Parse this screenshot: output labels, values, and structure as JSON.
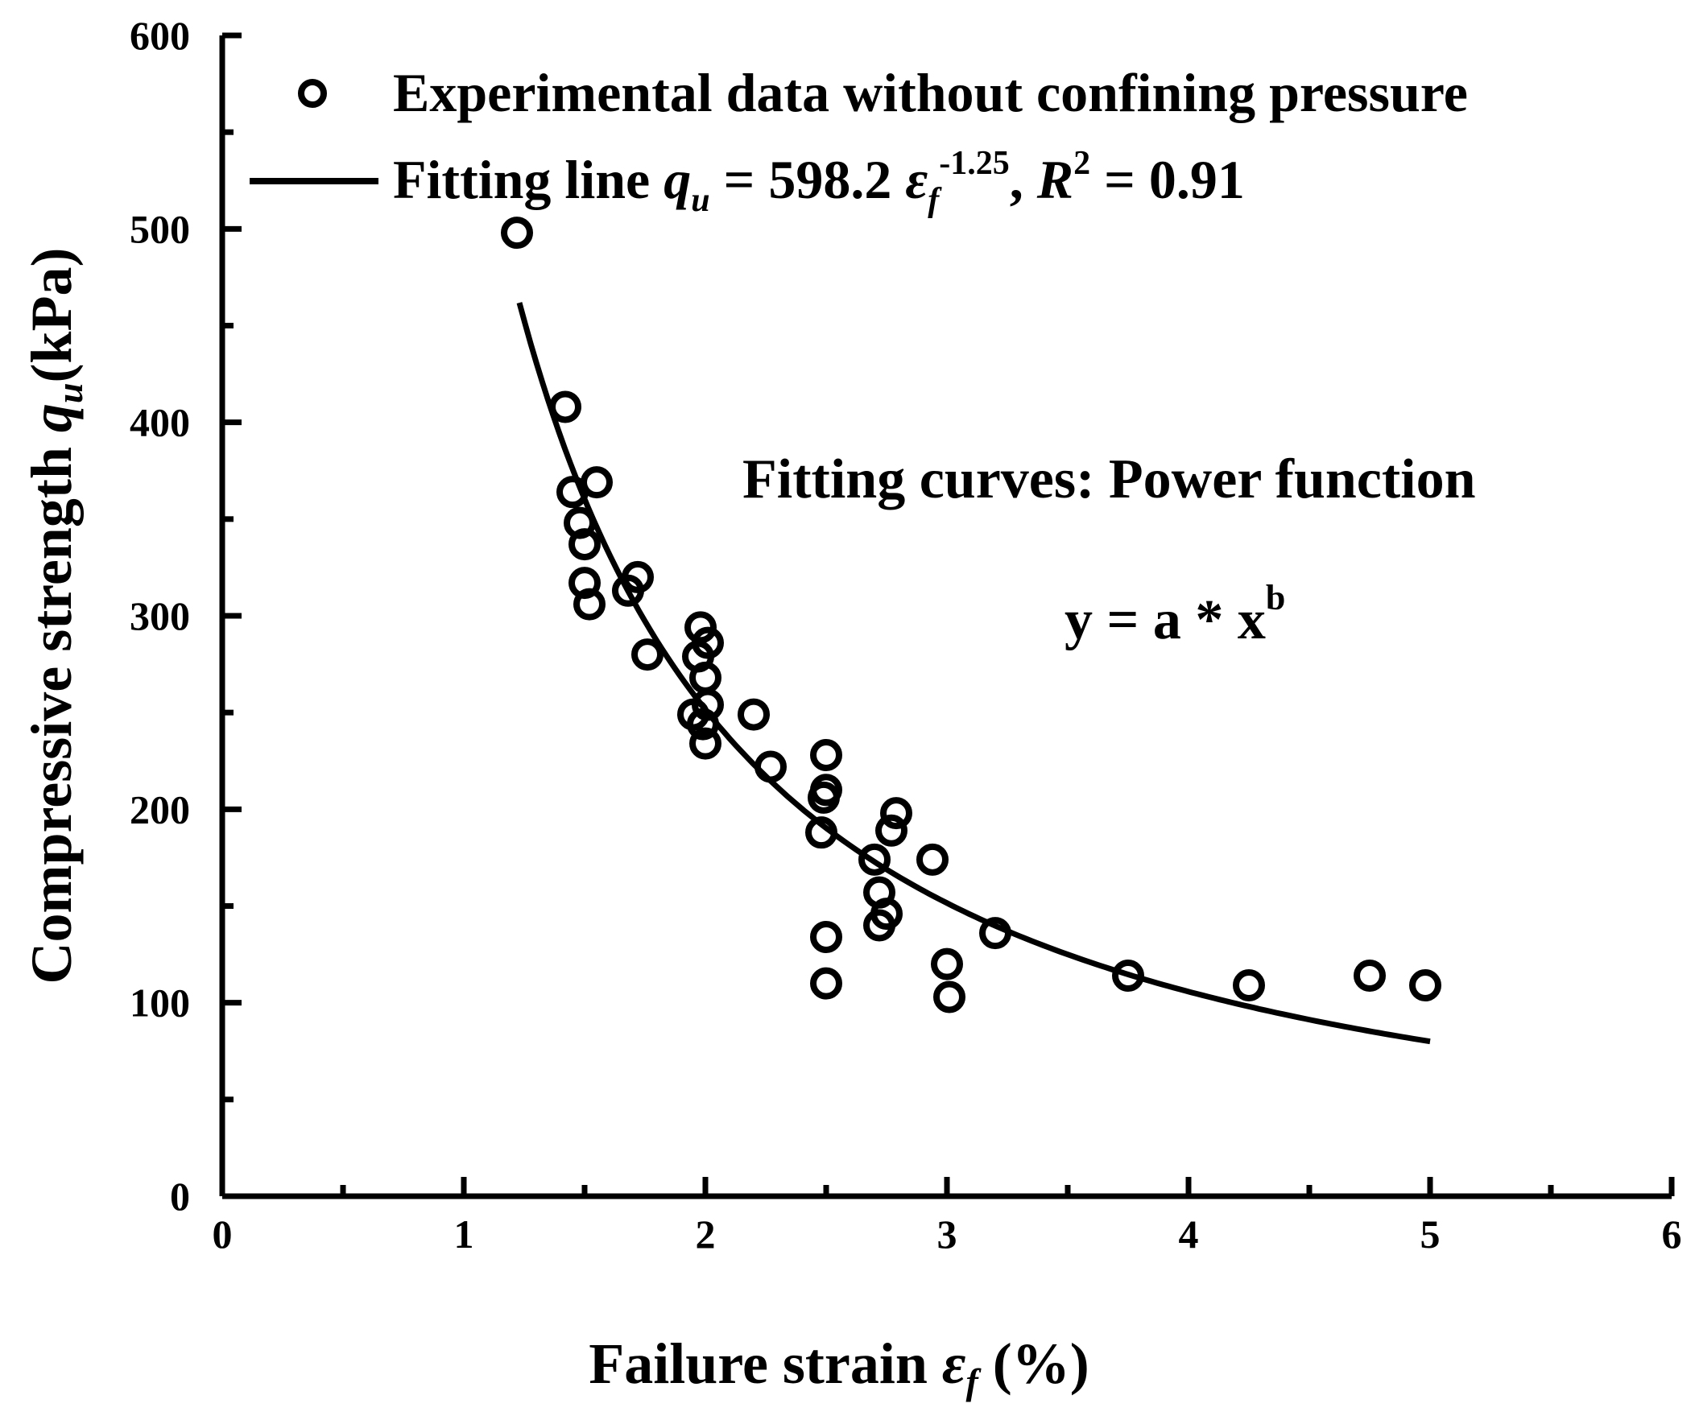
{
  "chart_data": {
    "type": "scatter",
    "title": "",
    "xlabel": {
      "main": "Failure strain ",
      "symbol": "ε",
      "subscript": "f",
      "unit": " (%)"
    },
    "ylabel": {
      "main": "Compressive strength ",
      "symbol": "q",
      "subscript": "u",
      "unit": "(kPa)"
    },
    "xlim": [
      0,
      6
    ],
    "ylim": [
      0,
      600
    ],
    "xticks": [
      0,
      1,
      2,
      3,
      4,
      5,
      6
    ],
    "xtick_labels": [
      "0",
      "1",
      "2",
      "3",
      "4",
      "5",
      "6"
    ],
    "yticks": [
      0,
      100,
      200,
      300,
      400,
      500,
      600
    ],
    "ytick_labels": [
      "0",
      "100",
      "200",
      "300",
      "400",
      "500",
      "600"
    ],
    "x_minor_step": 0.5,
    "y_minor_step": 50,
    "grid": false,
    "legend_position": "top",
    "legend": {
      "scatter": "Experimental data without confining pressure",
      "fit_prefix": "Fitting line ",
      "fit_q": "q",
      "fit_q_sub": "u",
      "fit_eq": " = 598.2 ",
      "fit_eps": "ε",
      "fit_eps_sub": "f",
      "fit_exp": "-1.25",
      "fit_comma": ", ",
      "fit_R": "R",
      "fit_R_sup": "2",
      "fit_R_val": " = 0.91"
    },
    "annotations": {
      "line1": "Fitting curves: Power function",
      "line2": "y = a * x",
      "line2_sup": "b"
    },
    "series": [
      {
        "name": "Experimental data without confining pressure",
        "kind": "scatter",
        "x": [
          1.22,
          1.42,
          1.45,
          1.48,
          1.5,
          1.5,
          1.52,
          1.55,
          1.68,
          1.72,
          1.76,
          1.95,
          1.97,
          1.98,
          1.99,
          2.0,
          2.0,
          2.01,
          2.01,
          2.2,
          2.27,
          2.48,
          2.49,
          2.5,
          2.5,
          2.5,
          2.5,
          2.7,
          2.72,
          2.72,
          2.75,
          2.77,
          2.79,
          2.94,
          3.0,
          3.01,
          3.2,
          3.75,
          4.25,
          4.75,
          4.98
        ],
        "y": [
          498,
          408,
          364,
          348,
          337,
          317,
          306,
          369,
          313,
          320,
          280,
          249,
          279,
          294,
          244,
          234,
          268,
          254,
          286,
          249,
          222,
          188,
          206,
          228,
          134,
          110,
          210,
          174,
          157,
          140,
          146,
          189,
          198,
          174,
          120,
          103,
          136,
          114,
          109,
          114,
          109
        ]
      },
      {
        "name": "Fitting line",
        "kind": "line",
        "a": 598.2,
        "b": -1.25,
        "x_range": [
          1.23,
          5.0
        ],
        "R2": 0.91
      }
    ]
  }
}
